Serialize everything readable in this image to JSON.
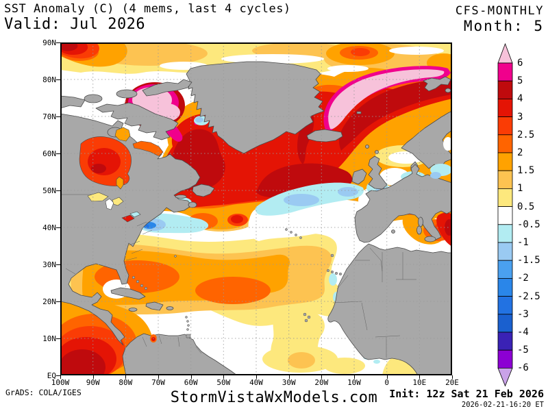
{
  "header": {
    "title": "SST Anomaly (C) (4 mems, last 4 cycles)",
    "valid": "Valid: Jul 2026",
    "model": "CFS-MONTHLY",
    "month": "Month: 5"
  },
  "axes": {
    "lat": [
      "90N",
      "80N",
      "70N",
      "60N",
      "50N",
      "40N",
      "30N",
      "20N",
      "10N",
      "EQ"
    ],
    "lon": [
      "100W",
      "90W",
      "80W",
      "70W",
      "60W",
      "50W",
      "40W",
      "30W",
      "20W",
      "10W",
      "0",
      "10E",
      "20E"
    ]
  },
  "colorbar": {
    "labels": [
      "6",
      "5",
      "4",
      "3",
      "2.5",
      "2",
      "1.5",
      "1",
      "0.5",
      "-0.5",
      "-1",
      "-1.5",
      "-2",
      "-2.5",
      "-3",
      "-4",
      "-5",
      "-6"
    ],
    "segments": [
      "#f0008c",
      "#bf0a0d",
      "#e41405",
      "#fa3c05",
      "#ff6400",
      "#ffa200",
      "#fdc351",
      "#fde87d",
      "#ffffff",
      "#b2ecf2",
      "#9acaf2",
      "#4aa0ef",
      "#2a86e9",
      "#2272e2",
      "#1a60cf",
      "#3a22b5",
      "#8c00d3"
    ],
    "arrow_top": "#f7c2da",
    "arrow_bottom": "#c9a2e8"
  },
  "footer": {
    "credit": "GrADS: COLA/IGES",
    "site": "StormVistaWxModels.com",
    "init": "Init: 12z Sat 21 Feb 2026",
    "timestamp": "2026-02-21-16:20 ET"
  },
  "palette": {
    "land": "#a8a8a8",
    "coast": "#4a4a4a",
    "grid": "#999999",
    "frame": "#000000"
  }
}
